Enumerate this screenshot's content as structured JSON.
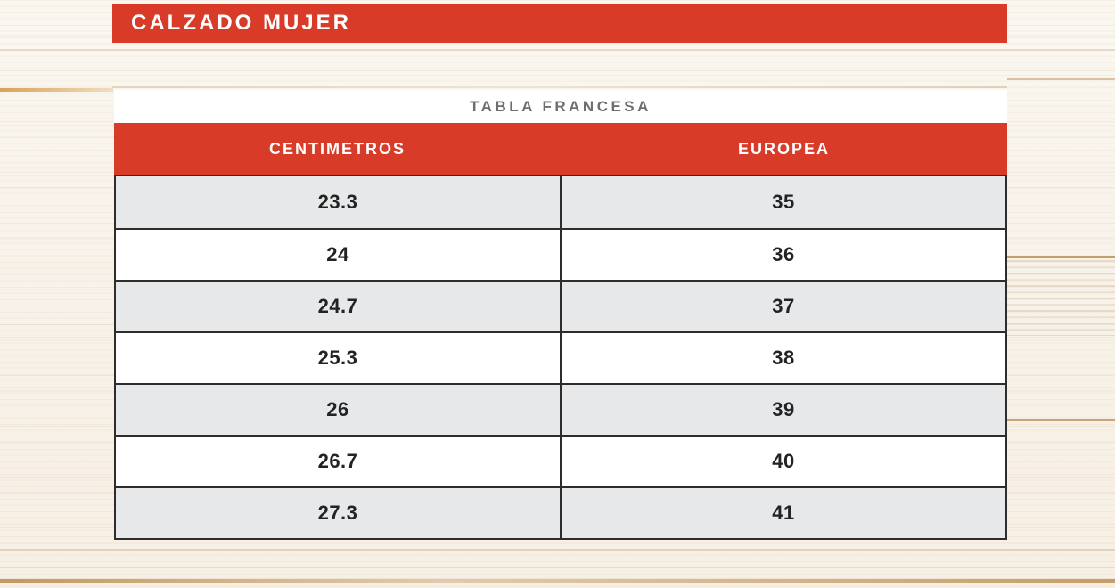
{
  "banner": {
    "title": "CALZADO MUJER"
  },
  "table": {
    "title": "TABLA FRANCESA",
    "columns": [
      "CENTIMETROS",
      "EUROPEA"
    ],
    "rows": [
      [
        "23.3",
        "35"
      ],
      [
        "24",
        "36"
      ],
      [
        "24.7",
        "37"
      ],
      [
        "25.3",
        "38"
      ],
      [
        "26",
        "39"
      ],
      [
        "26.7",
        "40"
      ],
      [
        "27.3",
        "41"
      ]
    ]
  },
  "colors": {
    "accent_red": "#D83B28",
    "row_alt": "#E6E8E9",
    "border_dark": "#2F2C29",
    "title_gray": "#6B6F72",
    "cell_text": "#232323"
  }
}
